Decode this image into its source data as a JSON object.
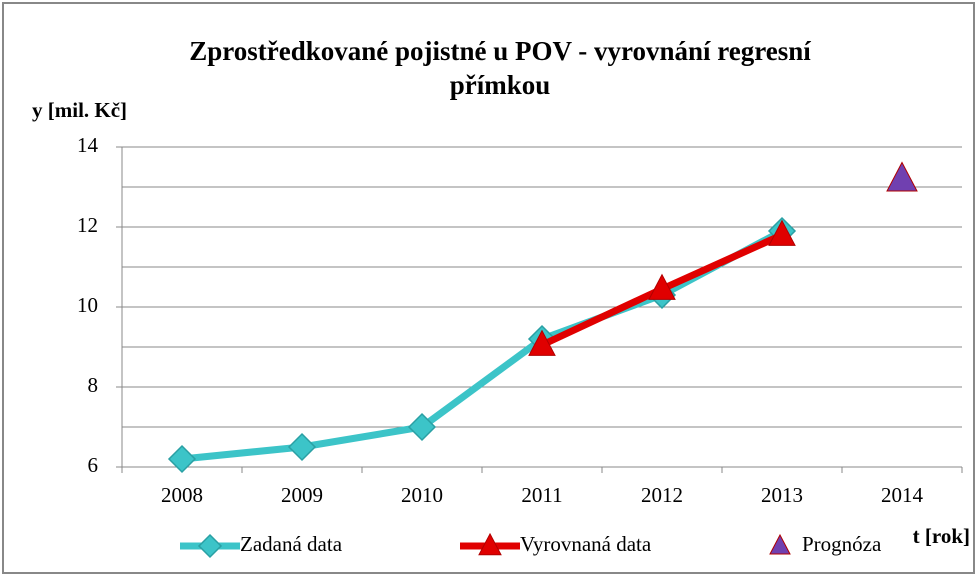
{
  "chart_data": {
    "type": "line",
    "title": "Zprostředkované pojistné u POV - vyrovnání regresní přímkou",
    "y_label": "y [mil. Kč]",
    "x_label": "t [rok]",
    "categories": [
      "2008",
      "2009",
      "2010",
      "2011",
      "2012",
      "2013",
      "2014"
    ],
    "series": [
      {
        "name": "Zadaná data",
        "color": "#3cc4c8",
        "marker": "diamond",
        "line": true,
        "values": [
          6.2,
          6.5,
          7.0,
          9.2,
          10.3,
          11.9,
          null
        ]
      },
      {
        "name": "Vyrovnaná data",
        "color": "#e00000",
        "marker": "triangle",
        "line": true,
        "values": [
          null,
          null,
          null,
          9.05,
          10.45,
          11.8,
          null
        ]
      },
      {
        "name": "Prognóza",
        "color": "#7040b0",
        "marker": "triangle",
        "line": false,
        "values": [
          null,
          null,
          null,
          null,
          null,
          null,
          13.2
        ]
      }
    ],
    "ylim": [
      6,
      14
    ],
    "yticks": [
      6,
      8,
      10,
      12,
      14
    ],
    "minor_grid": [
      7,
      9,
      11,
      13
    ],
    "grid": true,
    "legend": "bottom"
  }
}
